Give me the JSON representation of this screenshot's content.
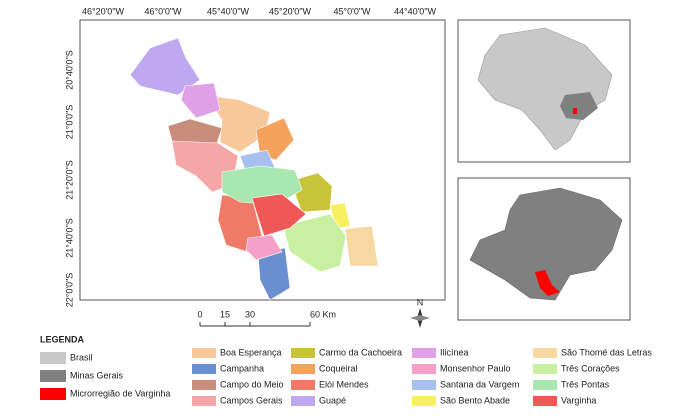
{
  "map": {
    "longitude_labels": [
      "46°20'0\"W",
      "46°0'0\"W",
      "45°40'0\"W",
      "45°20'0\"W",
      "45°0'0\"W",
      "44°40'0\"W"
    ],
    "latitude_labels": [
      "20°40'0\"S",
      "21°0'0\"S",
      "21°20'0\"S",
      "21°40'0\"S",
      "22°0'0\"S"
    ],
    "scale_labels": [
      "0",
      "15",
      "30",
      "60 Km"
    ],
    "north_label": "N"
  },
  "legend": {
    "title": "LEGENDA",
    "context": [
      {
        "name": "Brasil",
        "color": "#c8c8c8"
      },
      {
        "name": "Minas Gerais",
        "color": "#808080"
      },
      {
        "name": "Microrregião de Varginha",
        "color": "#ff0000"
      }
    ],
    "municipalities": [
      {
        "name": "Boa Esperança",
        "color": "#f6c89a"
      },
      {
        "name": "Campanha",
        "color": "#6a8fd0"
      },
      {
        "name": "Campo do Meio",
        "color": "#c98d7c"
      },
      {
        "name": "Campos Gerais",
        "color": "#f5a6a6"
      },
      {
        "name": "Carmo da Cachoeira",
        "color": "#c8c43a"
      },
      {
        "name": "Coqueiral",
        "color": "#f5a35c"
      },
      {
        "name": "Elói Mendes",
        "color": "#f07a68"
      },
      {
        "name": "Guapé",
        "color": "#c0a8f0"
      },
      {
        "name": "Ilicínea",
        "color": "#e0a0e8"
      },
      {
        "name": "Monsenhor Paulo",
        "color": "#f4a0c8"
      },
      {
        "name": "Santana da Vargem",
        "color": "#a8c0f0"
      },
      {
        "name": "São Bento Abade",
        "color": "#f8f060"
      },
      {
        "name": "São Thomé das Letras",
        "color": "#f6d8a0"
      },
      {
        "name": "Três Corações",
        "color": "#c8f0a0"
      },
      {
        "name": "Três Pontas",
        "color": "#a8e8b0"
      },
      {
        "name": "Varginha",
        "color": "#f05858"
      }
    ]
  }
}
